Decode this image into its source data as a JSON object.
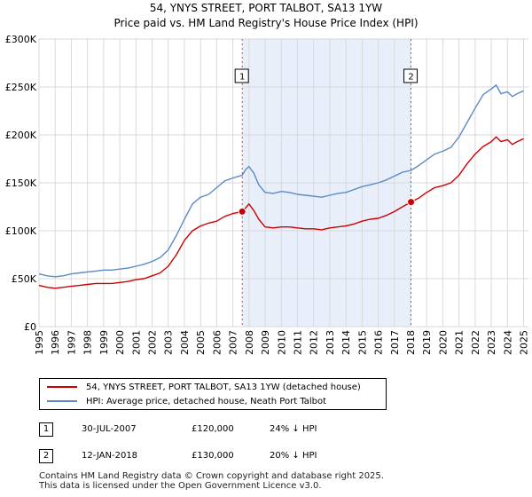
{
  "title": "54, YNYS STREET, PORT TALBOT, SA13 1YW",
  "subtitle": "Price paid vs. HM Land Registry's House Price Index (HPI)",
  "colors": {
    "property": "#cc0000",
    "hpi": "#5b8ac6",
    "shade": "#e8eefa",
    "grid": "#d9d9d9"
  },
  "chart_data": {
    "type": "line",
    "title": "54, YNYS STREET, PORT TALBOT, SA13 1YW",
    "subtitle": "Price paid vs. HM Land Registry's House Price Index (HPI)",
    "xlabel": "",
    "ylabel": "",
    "xlim": [
      1995,
      2025.3
    ],
    "ylim": [
      0,
      300000
    ],
    "yticks": [
      0,
      50000,
      100000,
      150000,
      200000,
      250000,
      300000
    ],
    "ytick_labels": [
      "£0",
      "£50K",
      "£100K",
      "£150K",
      "£200K",
      "£250K",
      "£300K"
    ],
    "xticks": [
      1995,
      1996,
      1997,
      1998,
      1999,
      2000,
      2001,
      2002,
      2003,
      2004,
      2005,
      2006,
      2007,
      2008,
      2009,
      2010,
      2011,
      2012,
      2013,
      2014,
      2015,
      2016,
      2017,
      2018,
      2019,
      2020,
      2021,
      2022,
      2023,
      2024,
      2025
    ],
    "xtick_labels": [
      "1995",
      "1996",
      "1997",
      "1998",
      "1999",
      "2000",
      "2001",
      "2002",
      "2003",
      "2004",
      "2005",
      "2006",
      "2007",
      "2008",
      "2009",
      "2010",
      "2011",
      "2012",
      "2013",
      "2014",
      "2015",
      "2016",
      "2017",
      "2018",
      "2019",
      "2020",
      "2021",
      "2022",
      "2023",
      "2024",
      "2025"
    ],
    "grid": true,
    "shaded_range": [
      2007.58,
      2018.03
    ],
    "series": [
      {
        "name": "54, YNYS STREET, PORT TALBOT, SA13 1YW (detached house)",
        "color": "#cc0000",
        "x": [
          1995.0,
          1995.5,
          1996.0,
          1996.5,
          1997.0,
          1997.5,
          1998.0,
          1998.5,
          1999.0,
          1999.5,
          2000.0,
          2000.5,
          2001.0,
          2001.5,
          2002.0,
          2002.5,
          2003.0,
          2003.5,
          2004.0,
          2004.5,
          2005.0,
          2005.5,
          2006.0,
          2006.5,
          2007.0,
          2007.58,
          2007.8,
          2008.0,
          2008.3,
          2008.6,
          2009.0,
          2009.5,
          2010.0,
          2010.5,
          2011.0,
          2011.5,
          2012.0,
          2012.5,
          2013.0,
          2013.5,
          2014.0,
          2014.5,
          2015.0,
          2015.5,
          2016.0,
          2016.5,
          2017.0,
          2017.5,
          2018.03,
          2018.5,
          2019.0,
          2019.5,
          2020.0,
          2020.5,
          2021.0,
          2021.5,
          2022.0,
          2022.5,
          2023.0,
          2023.3,
          2023.6,
          2024.0,
          2024.3,
          2024.6,
          2025.0
        ],
        "values": [
          43000,
          41000,
          40000,
          41000,
          42000,
          43000,
          44000,
          45000,
          45000,
          45000,
          46000,
          47000,
          49000,
          50000,
          53000,
          56000,
          63000,
          75000,
          90000,
          100000,
          105000,
          108000,
          110000,
          115000,
          118000,
          120000,
          124000,
          128000,
          121000,
          112000,
          104000,
          103000,
          104000,
          104000,
          103000,
          102000,
          102000,
          101000,
          103000,
          104000,
          105000,
          107000,
          110000,
          112000,
          113000,
          116000,
          120000,
          125000,
          130000,
          134000,
          140000,
          145000,
          147000,
          150000,
          158000,
          170000,
          180000,
          188000,
          193000,
          198000,
          193000,
          195000,
          190000,
          193000,
          196000
        ]
      },
      {
        "name": "HPI: Average price, detached house, Neath Port Talbot",
        "color": "#5b8ac6",
        "x": [
          1995.0,
          1995.5,
          1996.0,
          1996.5,
          1997.0,
          1997.5,
          1998.0,
          1998.5,
          1999.0,
          1999.5,
          2000.0,
          2000.5,
          2001.0,
          2001.5,
          2002.0,
          2002.5,
          2003.0,
          2003.5,
          2004.0,
          2004.5,
          2005.0,
          2005.5,
          2006.0,
          2006.5,
          2007.0,
          2007.58,
          2007.8,
          2008.0,
          2008.3,
          2008.6,
          2009.0,
          2009.5,
          2010.0,
          2010.5,
          2011.0,
          2011.5,
          2012.0,
          2012.5,
          2013.0,
          2013.5,
          2014.0,
          2014.5,
          2015.0,
          2015.5,
          2016.0,
          2016.5,
          2017.0,
          2017.5,
          2018.03,
          2018.5,
          2019.0,
          2019.5,
          2020.0,
          2020.5,
          2021.0,
          2021.5,
          2022.0,
          2022.5,
          2023.0,
          2023.3,
          2023.6,
          2024.0,
          2024.3,
          2024.6,
          2025.0
        ],
        "values": [
          55000,
          53000,
          52000,
          53000,
          55000,
          56000,
          57000,
          58000,
          59000,
          59000,
          60000,
          61000,
          63000,
          65000,
          68000,
          72000,
          80000,
          95000,
          112000,
          128000,
          135000,
          138000,
          145000,
          152000,
          155000,
          158000,
          164000,
          167000,
          160000,
          148000,
          140000,
          139000,
          141000,
          140000,
          138000,
          137000,
          136000,
          135000,
          137000,
          139000,
          140000,
          143000,
          146000,
          148000,
          150000,
          153000,
          157000,
          161000,
          163000,
          168000,
          174000,
          180000,
          183000,
          187000,
          198000,
          213000,
          228000,
          242000,
          248000,
          252000,
          243000,
          245000,
          240000,
          243000,
          246000
        ]
      }
    ],
    "annotations": [
      {
        "label": "1",
        "x": 2007.58,
        "value": 120000
      },
      {
        "label": "2",
        "x": 2018.03,
        "value": 130000
      }
    ]
  },
  "legend": {
    "property_label": "54, YNYS STREET, PORT TALBOT, SA13 1YW (detached house)",
    "hpi_label": "HPI: Average price, detached house, Neath Port Talbot"
  },
  "sales": [
    {
      "num": "1",
      "date": "30-JUL-2007",
      "price": "£120,000",
      "hpi": "24% ↓ HPI"
    },
    {
      "num": "2",
      "date": "12-JAN-2018",
      "price": "£130,000",
      "hpi": "20% ↓ HPI"
    }
  ],
  "footer": {
    "line1": "Contains HM Land Registry data © Crown copyright and database right 2025.",
    "line2": "This data is licensed under the Open Government Licence v3.0."
  }
}
